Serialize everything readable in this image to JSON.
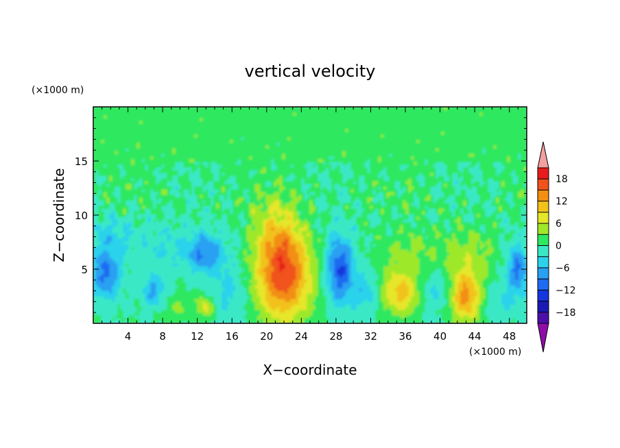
{
  "chart_data": {
    "type": "heatmap",
    "title": "vertical velocity",
    "xlabel": "X−coordinate",
    "ylabel": "Z−coordinate",
    "x_unit": "(×1000 m)",
    "z_unit": "(×1000 m)",
    "xlim": [
      0,
      50
    ],
    "zlim": [
      0,
      20
    ],
    "x_ticks": [
      "4",
      "8",
      "12",
      "16",
      "20",
      "24",
      "28",
      "32",
      "36",
      "40",
      "44",
      "48"
    ],
    "z_ticks": [
      "5",
      "10",
      "15"
    ],
    "colorbar": {
      "levels": [
        -21,
        -18,
        -15,
        -12,
        -9,
        -6,
        -3,
        0,
        3,
        6,
        9,
        12,
        15,
        18,
        21
      ],
      "labels": [
        "18",
        "12",
        "6",
        "0",
        "−6",
        "−12",
        "−18"
      ],
      "label_values": [
        18,
        12,
        6,
        0,
        -6,
        -12,
        -18
      ],
      "colors": [
        "#7a0db0",
        "#4a10a8",
        "#1a1ab4",
        "#1536dc",
        "#1e6bf0",
        "#2aa0f2",
        "#2cd2ec",
        "#3ae8c6",
        "#2ee860",
        "#9ee82a",
        "#e6e62a",
        "#f2c21a",
        "#f28e12",
        "#f0521c",
        "#e81c1c",
        "#f4a0a0"
      ],
      "under_color": "#8e0ea8",
      "over_color": "#f4a0a0"
    },
    "features": [
      {
        "x": 22,
        "z": 4.5,
        "peak": 18
      },
      {
        "x": 28.5,
        "z": 5.0,
        "peak": -13
      },
      {
        "x": 35.5,
        "z": 2.8,
        "peak": 12
      },
      {
        "x": 43,
        "z": 2.5,
        "peak": 14
      },
      {
        "x": 1.5,
        "z": 4.5,
        "peak": -11
      },
      {
        "x": 13,
        "z": 6.5,
        "peak": -10
      },
      {
        "x": 49,
        "z": 5.0,
        "peak": -11
      },
      {
        "x": 7,
        "z": 3.0,
        "peak": -8
      },
      {
        "x": 13,
        "z": 1.5,
        "peak": 7
      }
    ]
  }
}
